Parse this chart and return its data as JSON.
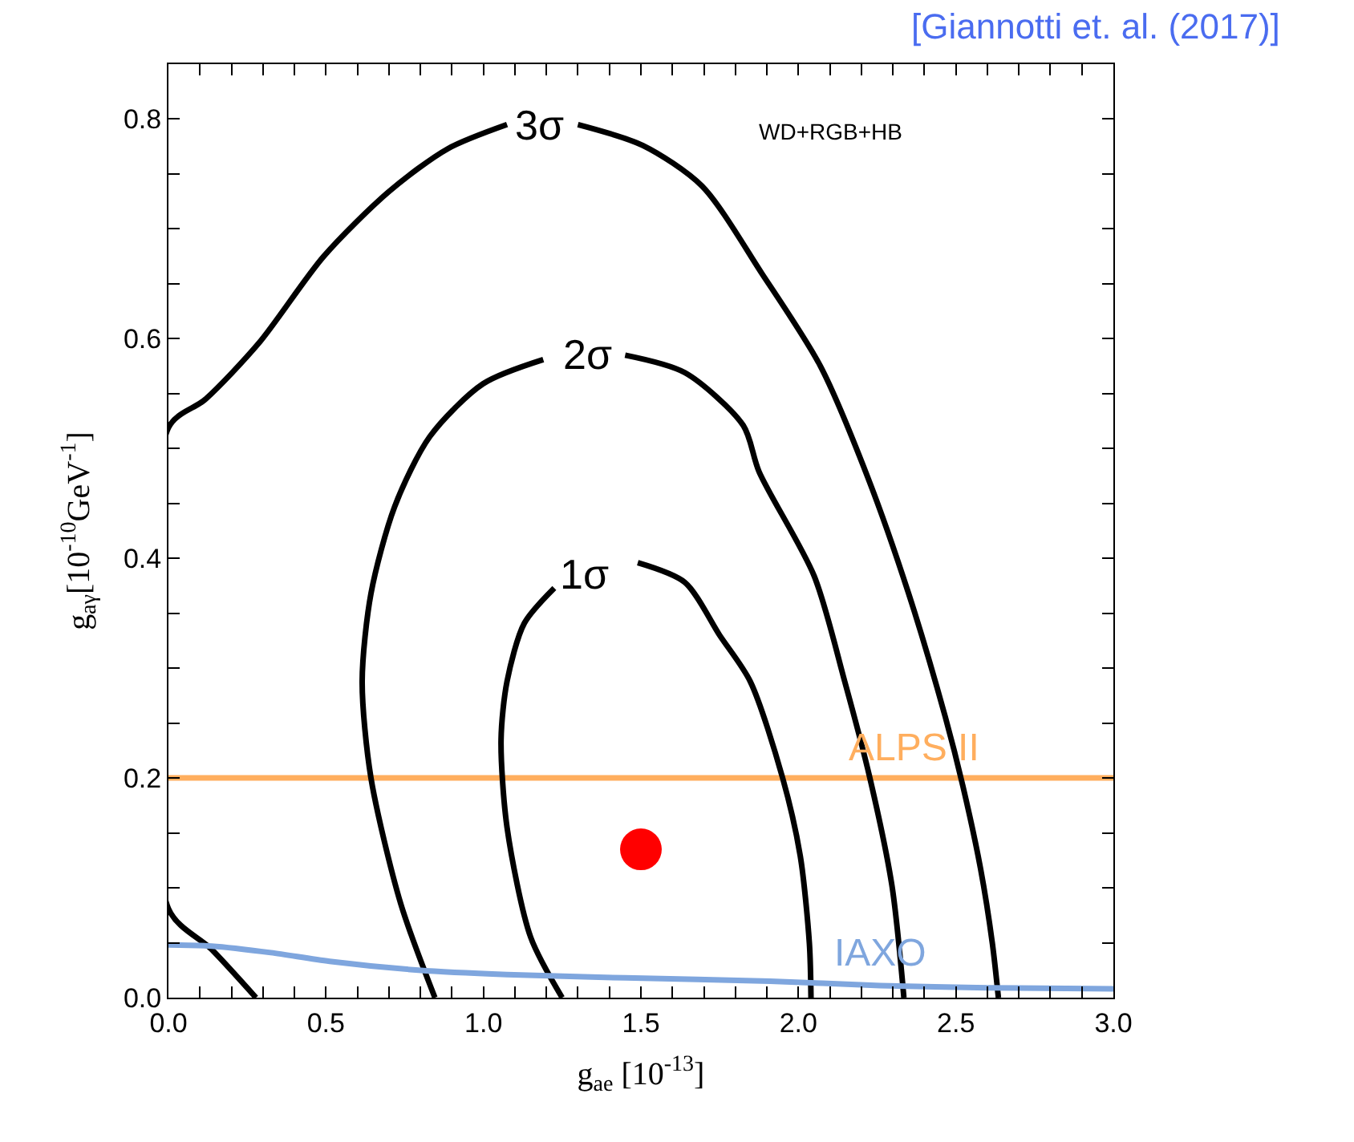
{
  "chart_data": {
    "type": "line",
    "xlabel": "g$_{ae}$ [10$^{-13}$]",
    "ylabel": "g$_{aγ}$[10$^{-10}$GeV$^{-1}$]",
    "xlim": [
      0,
      3
    ],
    "ylim": [
      0,
      0.85
    ],
    "xticks": [
      {
        "value": 0,
        "label": "0.0"
      },
      {
        "value": 0.1,
        "label": null
      },
      {
        "value": 0.2,
        "label": null
      },
      {
        "value": 0.3,
        "label": null
      },
      {
        "value": 0.4,
        "label": null
      },
      0.5,
      {
        "value": 0.6,
        "label": null
      },
      {
        "value": 0.7,
        "label": null
      },
      {
        "value": 0.8,
        "label": null
      },
      {
        "value": 0.9,
        "label": null
      },
      {
        "value": 1,
        "label": "1.0"
      },
      {
        "value": 1.1,
        "label": null
      },
      {
        "value": 1.2,
        "label": null
      },
      {
        "value": 1.3,
        "label": null
      },
      {
        "value": 1.4,
        "label": null
      },
      1.5,
      {
        "value": 1.6,
        "label": null
      },
      {
        "value": 1.7,
        "label": null
      },
      {
        "value": 1.8,
        "label": null
      },
      {
        "value": 1.9,
        "label": null
      },
      {
        "value": 2,
        "label": "2.0"
      },
      {
        "value": 2.1,
        "label": null
      },
      {
        "value": 2.2,
        "label": null
      },
      {
        "value": 2.3,
        "label": null
      },
      {
        "value": 2.4,
        "label": null
      },
      2.5,
      {
        "value": 2.6,
        "label": null
      },
      {
        "value": 2.7,
        "label": null
      },
      {
        "value": 2.8,
        "label": null
      },
      {
        "value": 2.9,
        "label": null
      },
      {
        "value": 3,
        "label": "3.0"
      }
    ],
    "yticks": [
      {
        "value": 0,
        "label": "0.0"
      },
      {
        "value": 0.05,
        "label": null
      },
      {
        "value": 0.1,
        "label": null
      },
      {
        "value": 0.15,
        "label": null
      },
      0.2,
      {
        "value": 0.25,
        "label": null
      },
      {
        "value": 0.3,
        "label": null
      },
      {
        "value": 0.35,
        "label": null
      },
      0.4,
      {
        "value": 0.45,
        "label": null
      },
      {
        "value": 0.5,
        "label": null
      },
      {
        "value": 0.55,
        "label": null
      },
      0.6,
      {
        "value": 0.65,
        "label": null
      },
      {
        "value": 0.7,
        "label": null
      },
      {
        "value": 0.75,
        "label": null
      },
      0.8
    ],
    "grid": false,
    "legend": false,
    "marker": "none",
    "line_style": "solid",
    "series": [
      {
        "color": "#000000",
        "x": [
          1.25,
          1.15,
          1.075,
          1.056,
          1.075,
          1.13,
          1.225,
          1.32,
          1.49,
          1.64,
          1.75,
          1.847,
          1.95,
          2.006,
          2.035,
          2.04
        ],
        "values": [
          0,
          0.055,
          0.155,
          0.235,
          0.288,
          0.341,
          0.373,
          null,
          0.396,
          0.378,
          0.33,
          0.288,
          0.2,
          0.129,
          0.049,
          0
        ]
      },
      {
        "color": "#000000",
        "x": [
          0.846,
          0.737,
          0.643,
          0.615,
          0.643,
          0.718,
          0.83,
          0.999,
          1.19,
          1.33,
          1.45,
          1.64,
          1.825,
          1.875,
          2.05,
          2.147,
          2.227,
          2.297,
          2.335
        ],
        "values": [
          0,
          0.086,
          0.2,
          0.288,
          0.368,
          0.447,
          0.511,
          0.559,
          0.581,
          null,
          0.585,
          0.569,
          0.521,
          0.479,
          0.384,
          0.288,
          0.2,
          0.102,
          0
        ]
      },
      {
        "color": "#000000",
        "x": [
          0.278,
          0.137,
          0,
          0,
          0.118,
          0.287,
          0.493,
          0.7,
          0.887,
          1.075,
          1.18,
          1.3,
          1.506,
          1.694,
          1.885,
          2.07,
          2.22,
          2.35,
          2.466,
          2.522,
          2.578,
          2.616,
          2.635
        ],
        "values": [
          0,
          0.044,
          0.081,
          0.519,
          0.545,
          0.596,
          0.675,
          0.734,
          0.773,
          0.795,
          null,
          0.795,
          0.776,
          0.739,
          0.659,
          0.575,
          0.474,
          0.368,
          0.256,
          0.193,
          0.118,
          0.049,
          0
        ]
      },
      {
        "name": "IAXO",
        "color": "#7fa6de",
        "x": [
          0,
          0.137,
          0.325,
          0.512,
          0.794,
          1.075,
          1.45,
          1.91,
          2.26,
          2.6,
          3.0
        ],
        "values": [
          0.048,
          0.047,
          0.041,
          0.033,
          0.025,
          0.021,
          0.018,
          0.015,
          0.011,
          0.009,
          0.008
        ]
      },
      {
        "type": "scatter",
        "marker": "circle",
        "color": "#ff0000",
        "x": [
          1.5
        ],
        "values": [
          0.135
        ]
      }
    ],
    "ref_lines": [
      {
        "axis": "y",
        "value": 0.2,
        "label": "ALPS II",
        "color": "#ffae5e"
      }
    ],
    "annotations": [
      {
        "text": "1σ",
        "x": 1.32,
        "y": 0.386
      },
      {
        "text": "2σ",
        "x": 1.33,
        "y": 0.585
      },
      {
        "text": "3σ",
        "x": 1.18,
        "y": 0.795
      },
      "WD+RGB+HB",
      "[Giannotti et. al. (2017)]"
    ]
  }
}
